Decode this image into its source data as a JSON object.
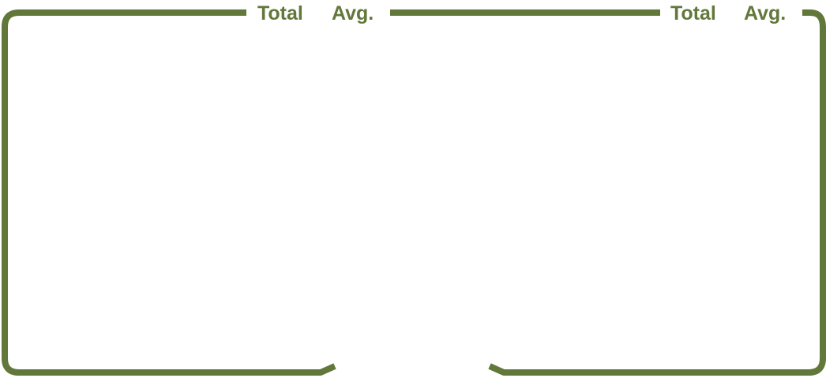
{
  "colors": {
    "frame_stroke": "#62773a",
    "label_text": "#62773a",
    "background": "#ffffff"
  },
  "left_group": {
    "total_label": "Total",
    "avg_label": "Avg."
  },
  "right_group": {
    "total_label": "Total",
    "avg_label": "Avg."
  }
}
